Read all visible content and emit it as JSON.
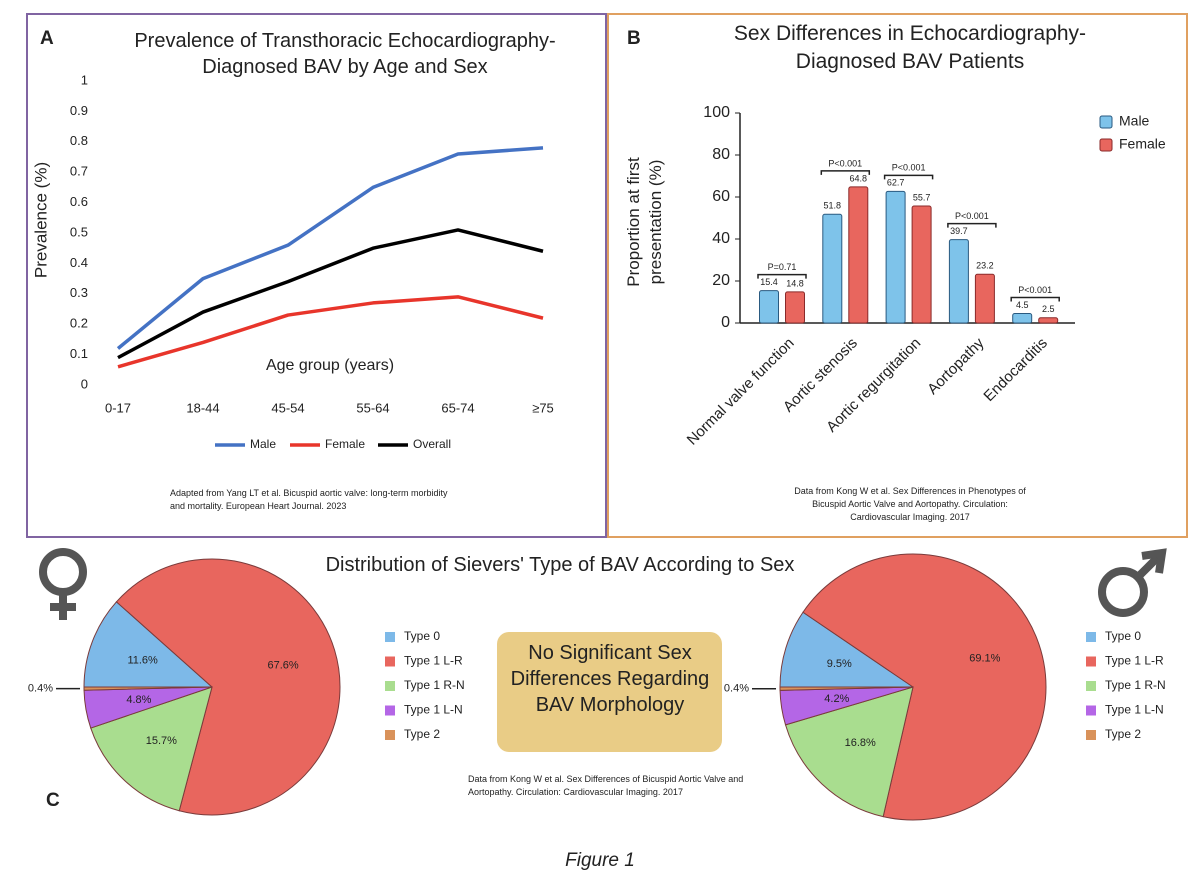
{
  "chart_data": [
    {
      "type": "line",
      "letter": "A",
      "title": "Prevalence of Transthoracic Echocardiography-Diagnosed BAV by Age and Sex",
      "x_label": "Age group (years)",
      "y_label": "Prevalence (%)",
      "categories": [
        "0-17",
        "18-44",
        "45-54",
        "55-64",
        "65-74",
        "≥75"
      ],
      "series": [
        {
          "name": "Male",
          "color": "#4472c4",
          "values": [
            0.12,
            0.35,
            0.46,
            0.65,
            0.76,
            0.78
          ]
        },
        {
          "name": "Female",
          "color": "#e8352b",
          "values": [
            0.06,
            0.14,
            0.23,
            0.27,
            0.29,
            0.22
          ]
        },
        {
          "name": "Overall",
          "color": "#000000",
          "values": [
            0.09,
            0.24,
            0.34,
            0.45,
            0.51,
            0.44
          ]
        }
      ],
      "ylim": [
        0,
        1
      ],
      "yticks": [
        0,
        0.1,
        0.2,
        0.3,
        0.4,
        0.5,
        0.6,
        0.7,
        0.8,
        0.9,
        1
      ],
      "grid": false,
      "legend": "bottom",
      "source": "Adapted from Yang LT et al. Bicuspid aortic valve: long-term morbidity and mortality. European Heart Journal. 2023"
    },
    {
      "type": "bar",
      "letter": "B",
      "title": "Sex Differences in Echocardiography-Diagnosed BAV Patients",
      "y_label": "Proportion at first presentation (%)",
      "categories": [
        "Normal valve function",
        "Aortic stenosis",
        "Aortic regurgitation",
        "Aortopathy",
        "Endocarditis"
      ],
      "series": [
        {
          "name": "Male",
          "color": "#7ec3ea",
          "values": [
            15.4,
            51.8,
            62.7,
            39.7,
            4.5
          ]
        },
        {
          "name": "Female",
          "color": "#e8665e",
          "values": [
            14.8,
            64.8,
            55.7,
            23.2,
            2.5
          ]
        }
      ],
      "p_values": [
        "P=0.71",
        "P<0.001",
        "P<0.001",
        "P<0.001",
        "P<0.001"
      ],
      "ylim": [
        0,
        100
      ],
      "yticks": [
        0,
        20,
        40,
        60,
        80,
        100
      ],
      "grid": false,
      "legend": "top-right",
      "source": "Data from Kong W et al. Sex Differences in Phenotypes of Bicuspid Aortic Valve and Aortopathy. Circulation: Cardiovascular Imaging. 2017"
    },
    {
      "type": "pie",
      "sex": "female",
      "categories": [
        "Type 0",
        "Type 1 L-R",
        "Type 1 R-N",
        "Type 1 L-N",
        "Type 2"
      ],
      "values": [
        11.6,
        67.6,
        15.7,
        4.8,
        0.4
      ],
      "value_labels": [
        "11.6%",
        "67.6%",
        "15.7%",
        "4.8%",
        "0.4%"
      ],
      "colors": [
        "#7db9e8",
        "#e8665e",
        "#a9dd8f",
        "#b466e6",
        "#d9925a"
      ]
    },
    {
      "type": "pie",
      "sex": "male",
      "categories": [
        "Type 0",
        "Type 1 L-R",
        "Type 1 R-N",
        "Type 1 L-N",
        "Type 2"
      ],
      "values": [
        9.5,
        69.1,
        16.8,
        4.2,
        0.4
      ],
      "value_labels": [
        "9.5%",
        "69.1%",
        "16.8%",
        "4.2%",
        "0.4%"
      ],
      "colors": [
        "#7db9e8",
        "#e8665e",
        "#a9dd8f",
        "#b466e6",
        "#d9925a"
      ]
    }
  ],
  "figure": {
    "panel_c_title": "Distribution of Sievers' Type of BAV According to Sex",
    "letter_c": "C",
    "callout": "No Significant Sex Differences Regarding BAV Morphology",
    "source_c": "Data from Kong W et al. Sex Differences of Bicuspid Aortic Valve and Aortopathy. Circulation: Cardiovascular Imaging. 2017",
    "caption": "Figure 1"
  }
}
